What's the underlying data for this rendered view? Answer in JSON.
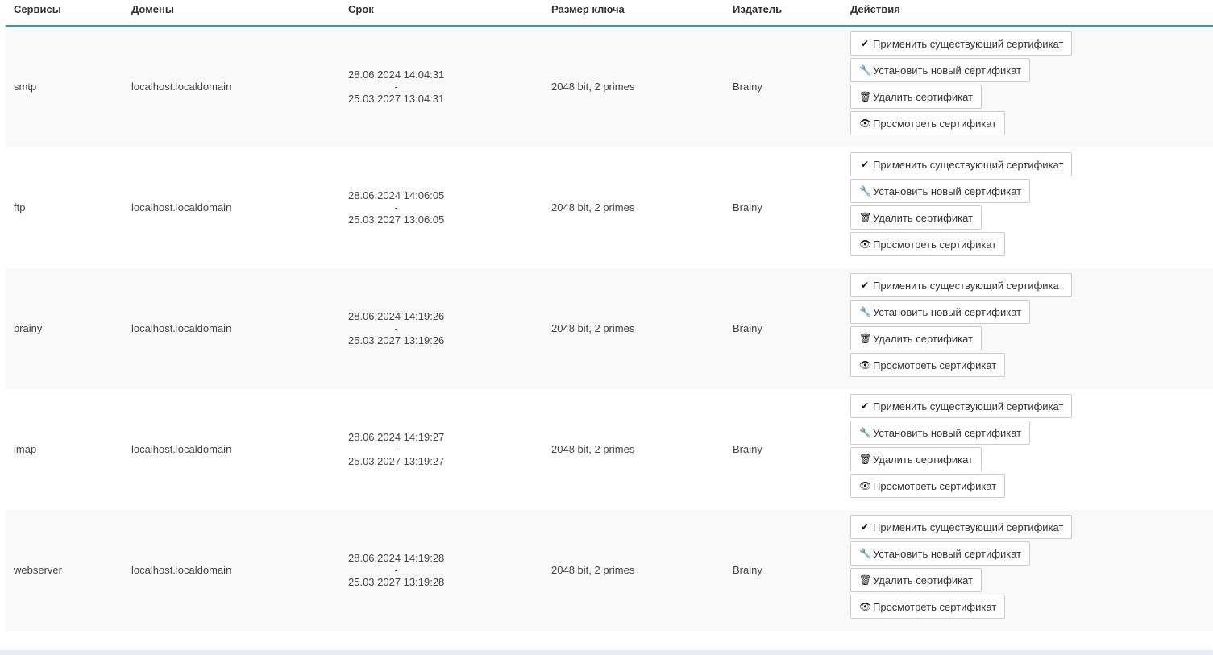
{
  "headers": {
    "services": "Сервисы",
    "domains": "Домены",
    "term": "Срок",
    "key_size": "Размер ключа",
    "issuer": "Издатель",
    "actions": "Действия"
  },
  "actions": [
    {
      "label": "Применить существующий сертификат",
      "icon": "check-icon"
    },
    {
      "label": "Установить новый сертификат",
      "icon": "wrench-icon"
    },
    {
      "label": "Удалить сертификат",
      "icon": "trash-icon"
    },
    {
      "label": "Просмотреть сертификат",
      "icon": "eye-icon"
    }
  ],
  "rows": [
    {
      "service": "smtp",
      "domain": "localhost.localdomain",
      "from": "28.06.2024 14:04:31",
      "sep": "-",
      "to": "25.03.2027 13:04:31",
      "key_size": "2048 bit, 2 primes",
      "issuer": "Brainy"
    },
    {
      "service": "ftp",
      "domain": "localhost.localdomain",
      "from": "28.06.2024 14:06:05",
      "sep": "-",
      "to": "25.03.2027 13:06:05",
      "key_size": "2048 bit, 2 primes",
      "issuer": "Brainy"
    },
    {
      "service": "brainy",
      "domain": "localhost.localdomain",
      "from": "28.06.2024 14:19:26",
      "sep": "-",
      "to": "25.03.2027 13:19:26",
      "key_size": "2048 bit, 2 primes",
      "issuer": "Brainy"
    },
    {
      "service": "imap",
      "domain": "localhost.localdomain",
      "from": "28.06.2024 14:19:27",
      "sep": "-",
      "to": "25.03.2027 13:19:27",
      "key_size": "2048 bit, 2 primes",
      "issuer": "Brainy"
    },
    {
      "service": "webserver",
      "domain": "localhost.localdomain",
      "from": "28.06.2024 14:19:28",
      "sep": "-",
      "to": "25.03.2027 13:19:28",
      "key_size": "2048 bit, 2 primes",
      "issuer": "Brainy"
    }
  ]
}
